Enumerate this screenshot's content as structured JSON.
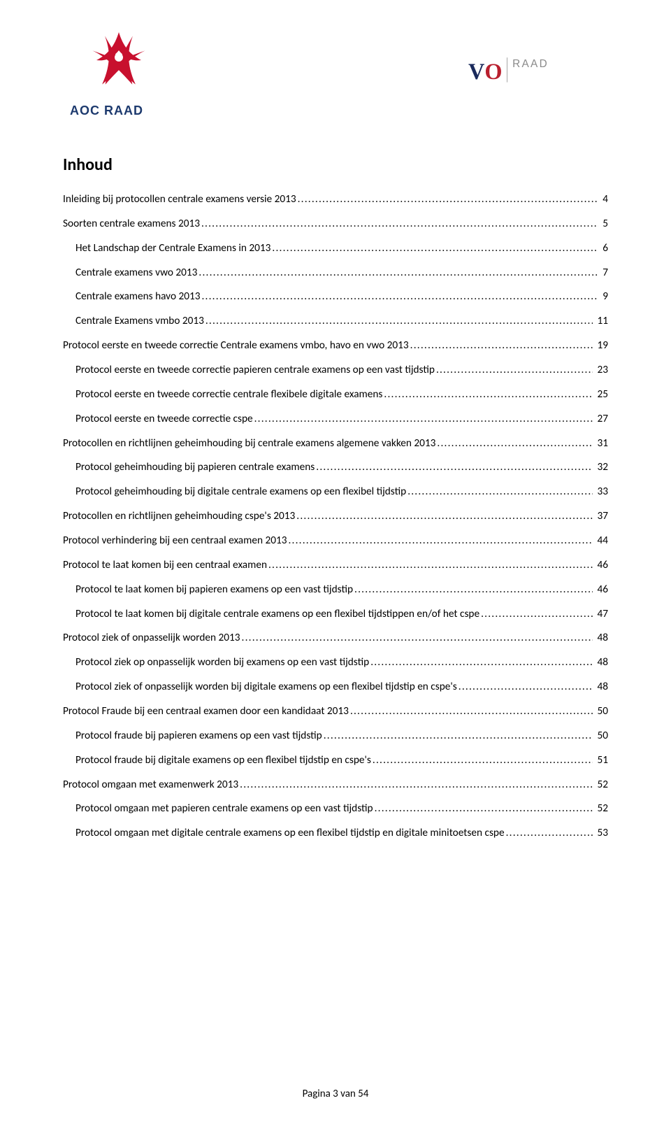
{
  "logos": {
    "left_name": "AOC RAAD",
    "right_vo": "VO",
    "right_raad": "RAAD"
  },
  "title": "Inhoud",
  "toc": [
    {
      "label": "Inleiding bij protocollen centrale examens versie 2013",
      "page": "4",
      "indent": false
    },
    {
      "label": "Soorten centrale examens 2013",
      "page": "5",
      "indent": false
    },
    {
      "label": "Het Landschap der Centrale Examens in 2013",
      "page": "6",
      "indent": true
    },
    {
      "label": "Centrale examens vwo 2013",
      "page": "7",
      "indent": true
    },
    {
      "label": "Centrale examens havo 2013",
      "page": "9",
      "indent": true
    },
    {
      "label": "Centrale Examens vmbo 2013",
      "page": "11",
      "indent": true
    },
    {
      "label": "Protocol eerste en tweede correctie Centrale examens vmbo, havo en vwo 2013",
      "page": "19",
      "indent": false
    },
    {
      "label": "Protocol eerste en tweede correctie papieren centrale examens op een vast tijdstip",
      "page": "23",
      "indent": true
    },
    {
      "label": "Protocol eerste en tweede correctie centrale flexibele digitale examens",
      "page": "25",
      "indent": true
    },
    {
      "label": "Protocol eerste en tweede correctie cspe",
      "page": "27",
      "indent": true
    },
    {
      "label": "Protocollen en richtlijnen geheimhouding bij centrale examens algemene vakken 2013",
      "page": "31",
      "indent": false
    },
    {
      "label": "Protocol geheimhouding bij papieren centrale examens",
      "page": "32",
      "indent": true
    },
    {
      "label": "Protocol geheimhouding bij digitale centrale examens op een flexibel tijdstip",
      "page": "33",
      "indent": true
    },
    {
      "label": "Protocollen en richtlijnen geheimhouding cspe's 2013",
      "page": "37",
      "indent": false
    },
    {
      "label": "Protocol verhindering bij een centraal examen 2013",
      "page": "44",
      "indent": false
    },
    {
      "label": "Protocol te laat komen bij een centraal examen",
      "page": "46",
      "indent": false
    },
    {
      "label": "Protocol te laat komen bij papieren examens op een vast tijdstip",
      "page": "46",
      "indent": true
    },
    {
      "label": "Protocol te laat komen bij digitale centrale examens op een flexibel tijdstippen en/of het cspe",
      "page": "47",
      "indent": true
    },
    {
      "label": "Protocol ziek of onpasselijk worden 2013",
      "page": "48",
      "indent": false
    },
    {
      "label": "Protocol ziek op onpasselijk worden bij examens op een vast tijdstip",
      "page": "48",
      "indent": true
    },
    {
      "label": "Protocol ziek of onpasselijk worden bij digitale examens op een flexibel tijdstip en cspe's",
      "page": "48",
      "indent": true
    },
    {
      "label": "Protocol Fraude bij een centraal examen door een kandidaat 2013",
      "page": "50",
      "indent": false
    },
    {
      "label": "Protocol fraude bij papieren examens op een vast tijdstip",
      "page": "50",
      "indent": true
    },
    {
      "label": "Protocol fraude bij digitale examens op een flexibel tijdstip en cspe's",
      "page": "51",
      "indent": true
    },
    {
      "label": "Protocol omgaan met examenwerk 2013",
      "page": "52",
      "indent": false
    },
    {
      "label": "Protocol omgaan met papieren centrale examens op een vast tijdstip",
      "page": "52",
      "indent": true
    },
    {
      "label": "Protocol omgaan met digitale centrale examens op een flexibel tijdstip en digitale minitoetsen cspe",
      "page": "53",
      "indent": true
    }
  ],
  "footer": "Pagina 3 van 54",
  "colors": {
    "aoc_red": "#c8102e",
    "aoc_navy": "#1d3a6e",
    "vo_navy": "#1a2a5c",
    "vo_red": "#b91f2e",
    "vo_gray": "#8a8a8a",
    "text": "#000000",
    "background": "#ffffff"
  }
}
